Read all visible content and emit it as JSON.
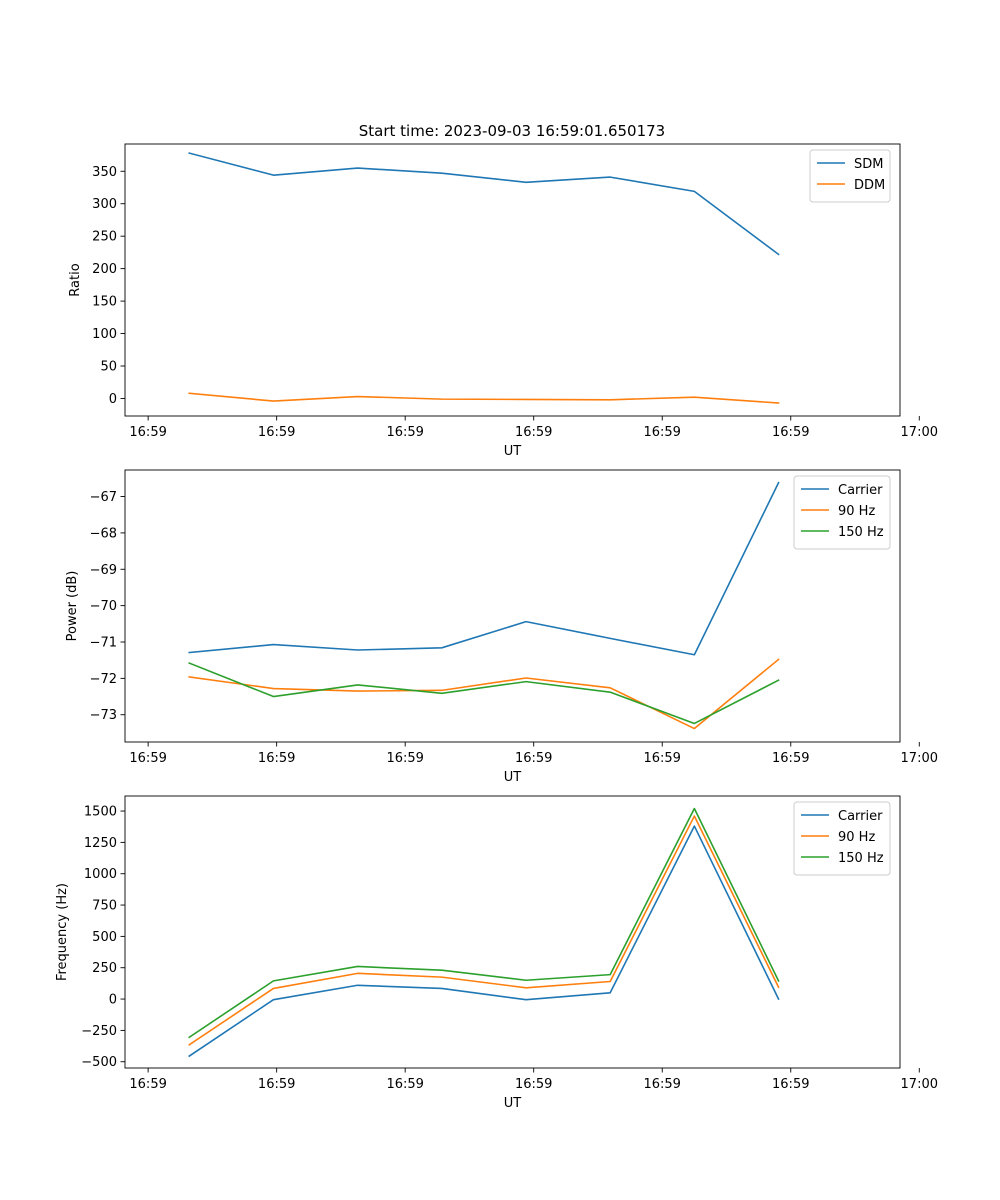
{
  "figure_title": "Start time: 2023-09-03 16:59:01.650173",
  "colors": {
    "c0": "#1f77b4",
    "c1": "#ff7f0e",
    "c2": "#2ca02c"
  },
  "chart_data": [
    {
      "type": "line",
      "id": "ratio",
      "title": "Start time: 2023-09-03 16:59:01.650173",
      "xlabel": "UT",
      "ylabel": "Ratio",
      "x": [
        0.5,
        1.155,
        1.81,
        2.465,
        3.12,
        3.775,
        4.43,
        5.085
      ],
      "xlim": [
        0.0,
        6.03
      ],
      "xticks": [
        0.18,
        1.18,
        2.18,
        3.18,
        4.18,
        5.18,
        6.18
      ],
      "xtick_labels": [
        "16:59",
        "16:59",
        "16:59",
        "16:59",
        "16:59",
        "16:59",
        "17:00"
      ],
      "ylim": [
        -27,
        392
      ],
      "yticks": [
        0,
        50,
        100,
        150,
        200,
        250,
        300,
        350
      ],
      "ytick_labels": [
        "0",
        "50",
        "100",
        "150",
        "200",
        "250",
        "300",
        "350"
      ],
      "legend_position": "top-right",
      "series": [
        {
          "name": "SDM",
          "color": "#1f77b4",
          "values": [
            378,
            344,
            355,
            347,
            333,
            341,
            319,
            222
          ]
        },
        {
          "name": "DDM",
          "color": "#ff7f0e",
          "values": [
            8,
            -4,
            3,
            -1,
            -1.5,
            -2,
            2,
            -7
          ]
        }
      ]
    },
    {
      "type": "line",
      "id": "power",
      "title": "",
      "xlabel": "UT",
      "ylabel": "Power (dB)",
      "x": [
        0.5,
        1.155,
        1.81,
        2.465,
        3.12,
        3.775,
        4.43,
        5.085
      ],
      "xlim": [
        0.0,
        6.03
      ],
      "xticks": [
        0.18,
        1.18,
        2.18,
        3.18,
        4.18,
        5.18,
        6.18
      ],
      "xtick_labels": [
        "16:59",
        "16:59",
        "16:59",
        "16:59",
        "16:59",
        "16:59",
        "17:00"
      ],
      "ylim": [
        -73.75,
        -66.27
      ],
      "yticks": [
        -73,
        -72,
        -71,
        -70,
        -69,
        -68,
        -67
      ],
      "ytick_labels": [
        "−73",
        "−72",
        "−71",
        "−70",
        "−69",
        "−68",
        "−67"
      ],
      "legend_position": "top-right",
      "series": [
        {
          "name": "Carrier",
          "color": "#1f77b4",
          "values": [
            -71.29,
            -71.07,
            -71.22,
            -71.16,
            -70.44,
            -70.9,
            -71.35,
            -66.62
          ]
        },
        {
          "name": "90 Hz",
          "color": "#ff7f0e",
          "values": [
            -71.96,
            -72.28,
            -72.35,
            -72.33,
            -71.99,
            -72.26,
            -73.38,
            -71.48
          ]
        },
        {
          "name": "150 Hz",
          "color": "#2ca02c",
          "values": [
            -71.58,
            -72.5,
            -72.18,
            -72.41,
            -72.09,
            -72.38,
            -73.24,
            -72.05
          ]
        }
      ]
    },
    {
      "type": "line",
      "id": "frequency",
      "title": "",
      "xlabel": "UT",
      "ylabel": "Frequency (Hz)",
      "x": [
        0.5,
        1.155,
        1.81,
        2.465,
        3.12,
        3.775,
        4.43,
        5.085
      ],
      "xlim": [
        0.0,
        6.03
      ],
      "xticks": [
        0.18,
        1.18,
        2.18,
        3.18,
        4.18,
        5.18,
        6.18
      ],
      "xtick_labels": [
        "16:59",
        "16:59",
        "16:59",
        "16:59",
        "16:59",
        "16:59",
        "17:00"
      ],
      "ylim": [
        -550,
        1620
      ],
      "yticks": [
        -500,
        -250,
        0,
        250,
        500,
        750,
        1000,
        1250,
        1500
      ],
      "ytick_labels": [
        "−500",
        "−250",
        "0",
        "250",
        "500",
        "750",
        "1000",
        "1250",
        "1500"
      ],
      "legend_position": "top-right",
      "series": [
        {
          "name": "Carrier",
          "color": "#1f77b4",
          "values": [
            -455,
            -5,
            110,
            85,
            -5,
            50,
            1380,
            0
          ]
        },
        {
          "name": "90 Hz",
          "color": "#ff7f0e",
          "values": [
            -365,
            85,
            205,
            175,
            90,
            140,
            1460,
            95
          ]
        },
        {
          "name": "150 Hz",
          "color": "#2ca02c",
          "values": [
            -305,
            145,
            260,
            230,
            150,
            195,
            1520,
            145
          ]
        }
      ]
    }
  ]
}
